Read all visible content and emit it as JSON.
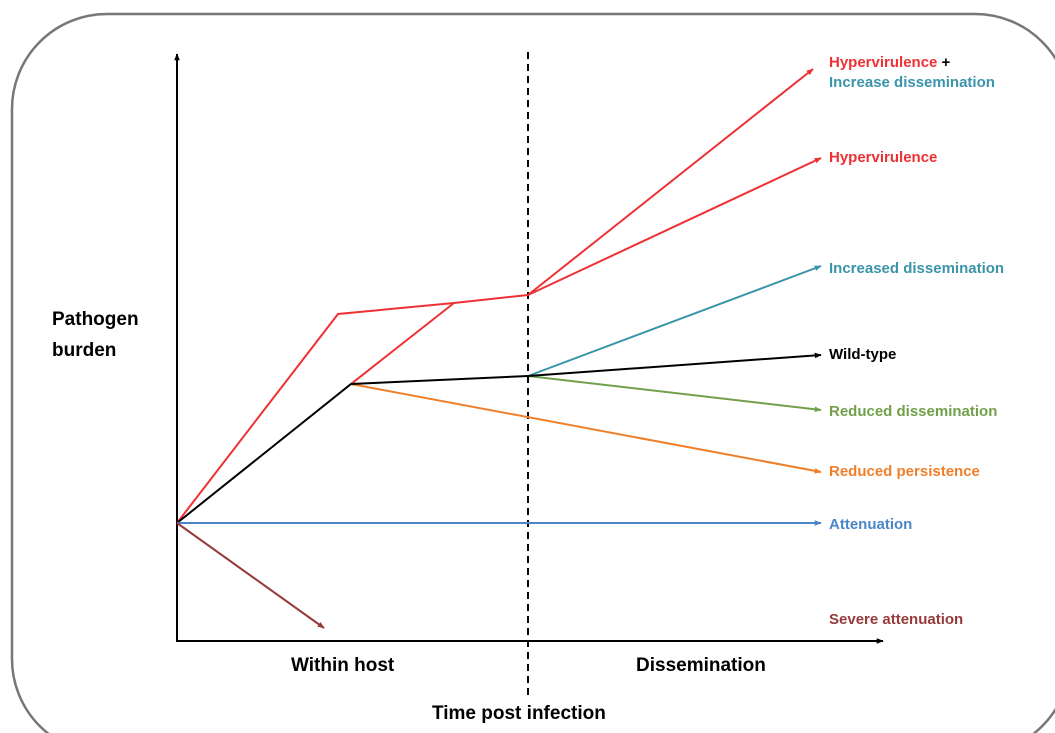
{
  "axes": {
    "y_label_line1": "Pathogen",
    "y_label_line2": "burden",
    "x_title": "Time post infection",
    "phase_within": "Within host",
    "phase_dissemination": "Dissemination"
  },
  "outcomes": {
    "hyper_increase_part1": "Hypervirulence",
    "hyper_increase_plus": " +",
    "hyper_increase_part2": "Increase dissemination",
    "hypervirulence": "Hypervirulence",
    "increased_dissemination": "Increased dissemination",
    "wild_type": "Wild-type",
    "reduced_dissemination": "Reduced dissemination",
    "reduced_persistence": "Reduced persistence",
    "attenuation": "Attenuation",
    "severe_attenuation": "Severe attenuation"
  },
  "colors": {
    "frame": "#777777",
    "axis": "#000000",
    "hypervirulence": "#ee3134",
    "dissemination_blue": "#3a94aa",
    "wild_type": "#000000",
    "reduced_dissemination": "#72a04a",
    "reduced_persistence": "#f07f2a",
    "attenuation": "#4b86c6",
    "severe_attenuation": "#963a3a"
  }
}
